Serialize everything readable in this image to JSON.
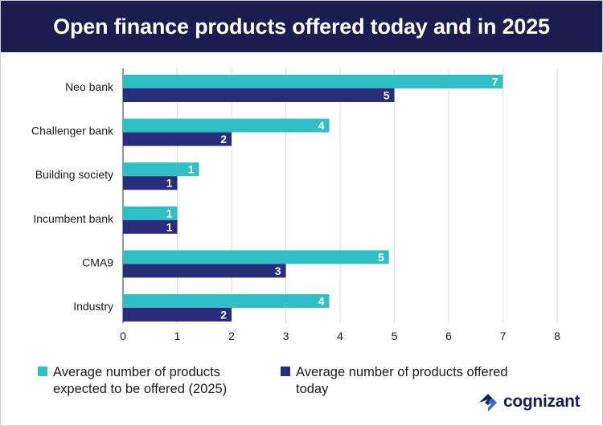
{
  "header": {
    "title": "Open finance products offered today and in 2025"
  },
  "colors": {
    "expected_2025": "#2fbfc4",
    "offered_today": "#2a2d7c",
    "header_bg": "#1a1d4e"
  },
  "chart_data": {
    "type": "bar",
    "orientation": "horizontal",
    "categories": [
      "Neo bank",
      "Challenger bank",
      "Building society",
      "Incumbent bank",
      "CMA9",
      "Industry"
    ],
    "series": [
      {
        "name": "Average number of products expected to be offered (2025)",
        "values": [
          7.0,
          3.8,
          1.4,
          1.0,
          4.9,
          3.8
        ],
        "labels": [
          "7",
          "4",
          "1",
          "1",
          "5",
          "4"
        ]
      },
      {
        "name": "Average number of products offered today",
        "values": [
          5.0,
          2.0,
          1.0,
          1.0,
          3.0,
          2.0
        ],
        "labels": [
          "5",
          "2",
          "1",
          "1",
          "3",
          "2"
        ]
      }
    ],
    "xlim": [
      0,
      8
    ],
    "xticks": [
      "0",
      "1",
      "2",
      "3",
      "4",
      "5",
      "6",
      "7",
      "8"
    ],
    "grid": true,
    "legend_position": "bottom"
  },
  "legend": {
    "expected_2025": "Average number of products expected to be offered (2025)",
    "offered_today": "Average number of products offered today"
  },
  "logo": {
    "text": "cognizant"
  }
}
